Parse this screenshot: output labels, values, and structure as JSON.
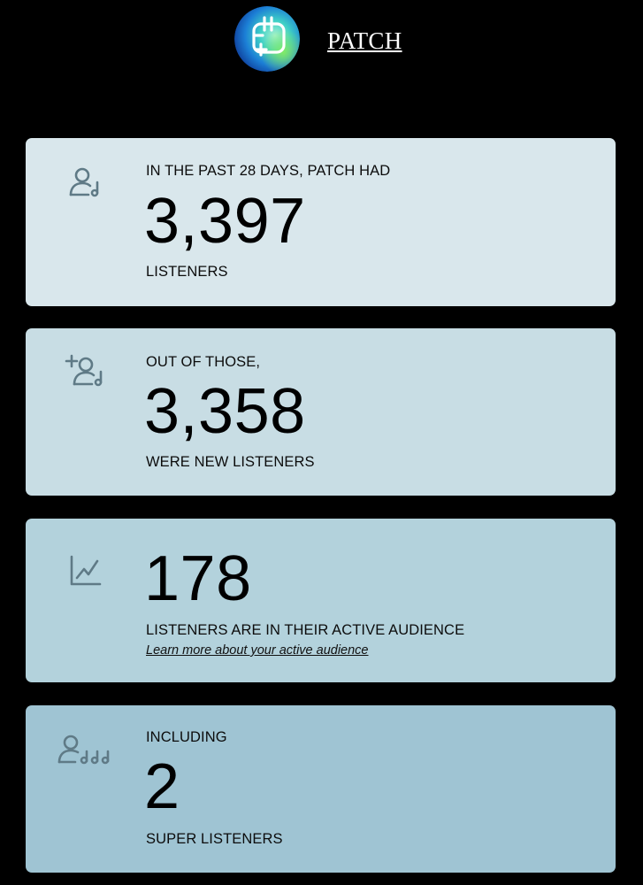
{
  "header": {
    "artist_name": "PATCH",
    "logo_icon": "patch-logo-icon"
  },
  "colors": {
    "page_background": "#000000",
    "card_1": "#d9e7ec",
    "card_2": "#c8dde4",
    "card_3": "#b3d2dc",
    "card_4": "#9fc4d3",
    "icon": "#5f7a86"
  },
  "cards": [
    {
      "icon": "listener-icon",
      "intro": "IN THE PAST 28 DAYS, PATCH HAD",
      "value": "3,397",
      "caption": "LISTENERS"
    },
    {
      "icon": "new-listener-icon",
      "intro": "OUT OF THOSE,",
      "value": "3,358",
      "caption": "WERE NEW LISTENERS"
    },
    {
      "icon": "trend-chart-icon",
      "value": "178",
      "caption": "LISTENERS ARE IN THEIR ACTIVE AUDIENCE",
      "link": "Learn more about your active audience"
    },
    {
      "icon": "super-listeners-icon",
      "intro": "INCLUDING",
      "value": "2",
      "caption": "SUPER LISTENERS"
    }
  ]
}
